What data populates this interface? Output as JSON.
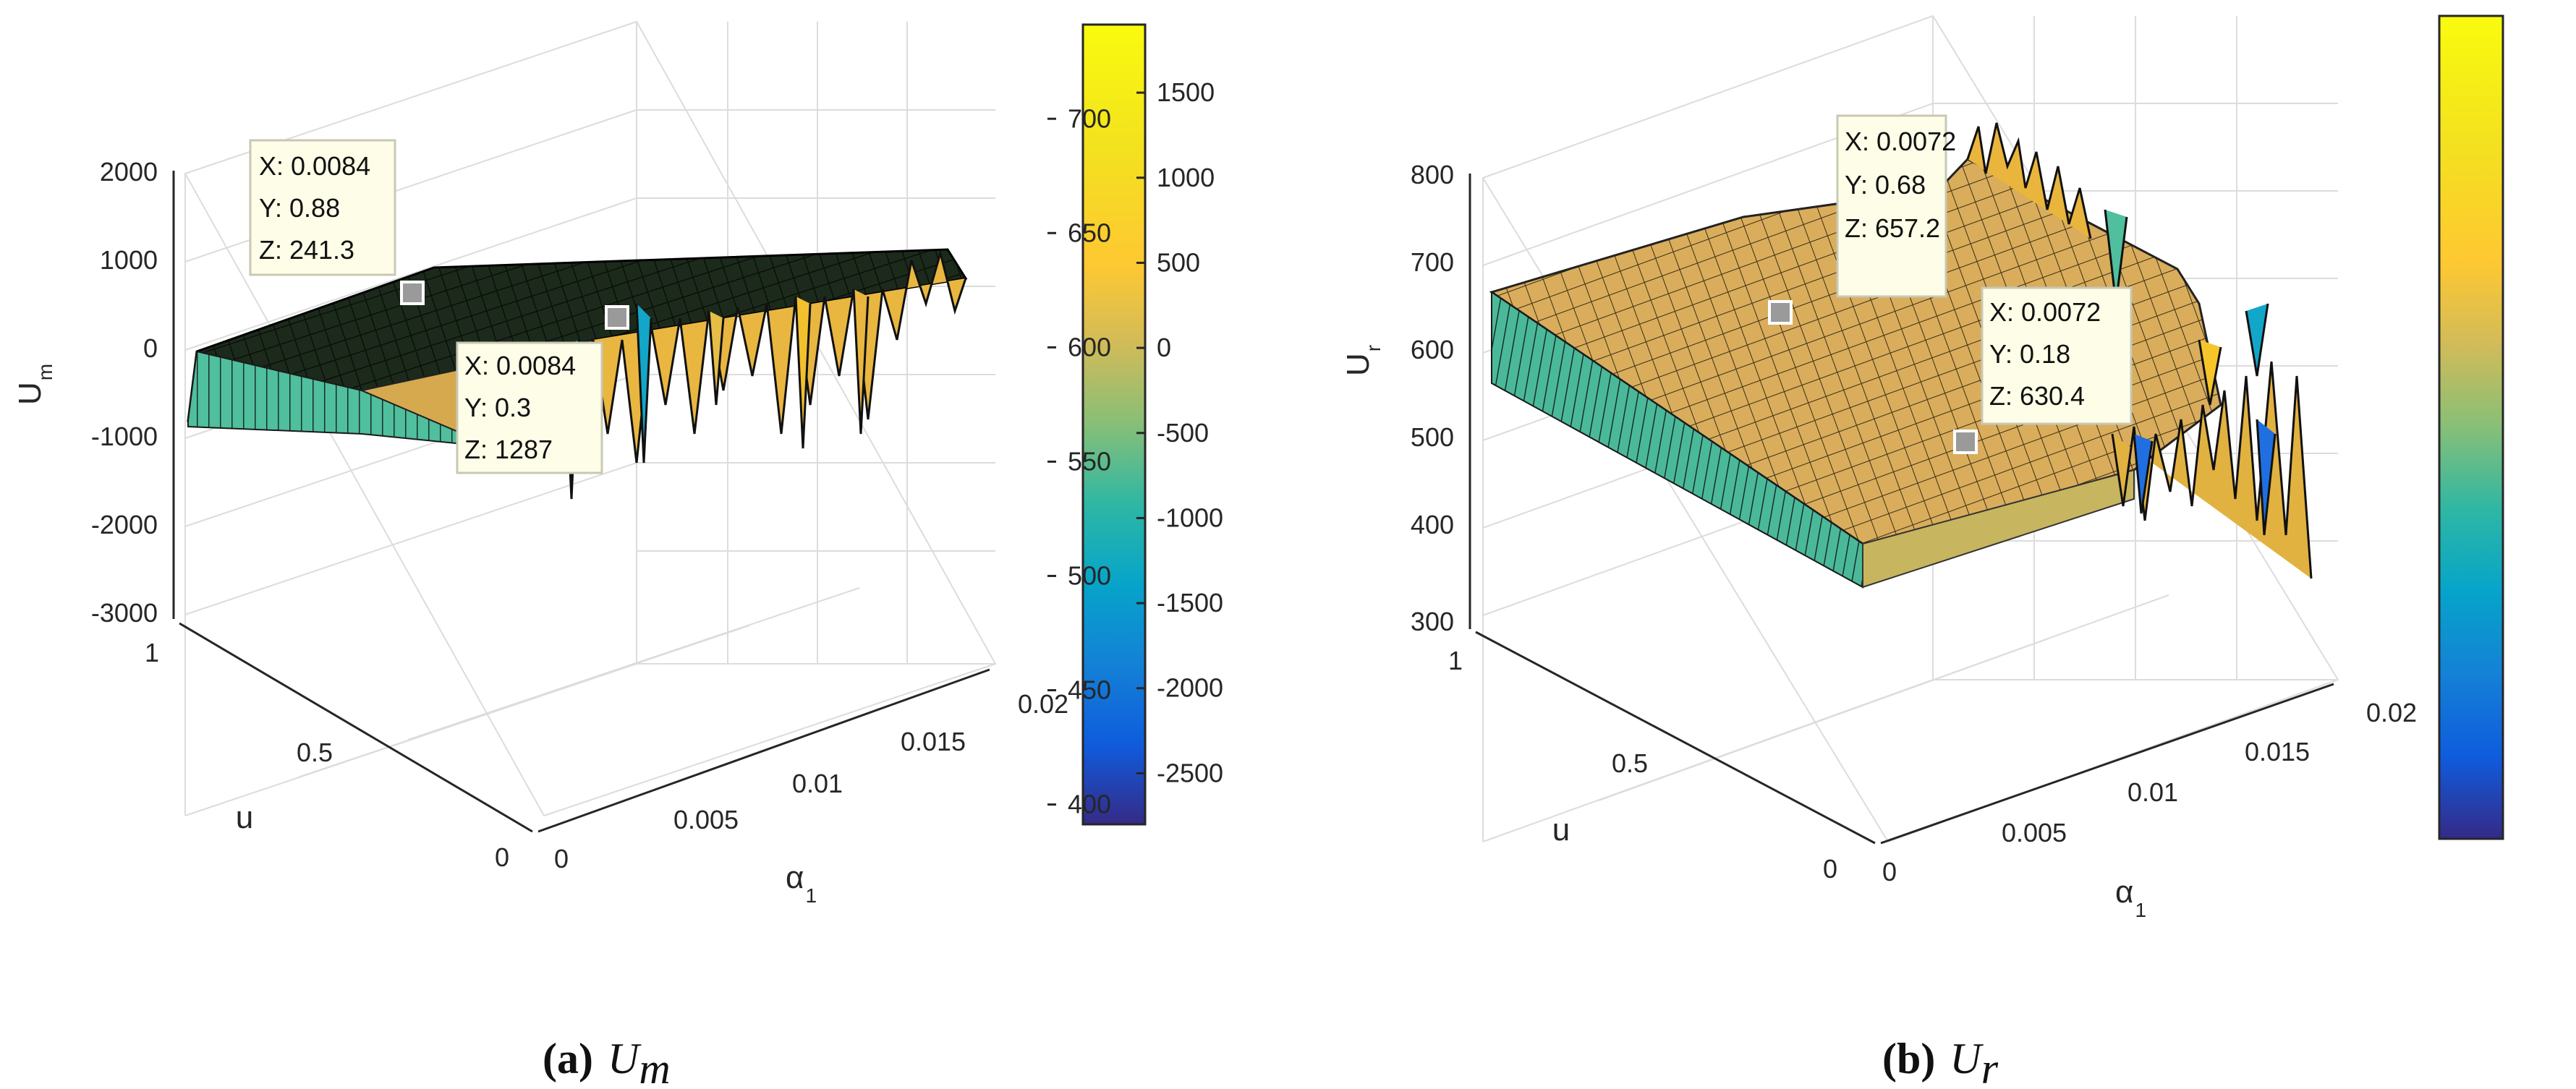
{
  "chart_data": [
    {
      "type": "surface",
      "caption": {
        "label": "(a)",
        "math_main": "U",
        "math_sub": "m"
      },
      "zlabel": {
        "main": "U",
        "sub": "m"
      },
      "ylabel": "u",
      "xlabel": {
        "main": "α",
        "sub": "1"
      },
      "xlim": [
        0,
        0.02
      ],
      "ylim": [
        0,
        1
      ],
      "zlim": [
        -3000,
        2000
      ],
      "x_ticks": [
        "0",
        "0.005",
        "0.01",
        "0.015",
        "0.02"
      ],
      "y_ticks": [
        "0",
        "0.5",
        "1"
      ],
      "z_ticks": [
        "2000",
        "1000",
        "0",
        "-1000",
        "-2000",
        "-3000"
      ],
      "colorbar_ticks": [
        "1500",
        "1000",
        "500",
        "0",
        "-500",
        "-1000",
        "-1500",
        "-2000",
        "-2500"
      ],
      "colorbar_range": [
        -2800,
        1900
      ],
      "datatips": [
        {
          "x_text": "X: 0.0084",
          "y_text": "Y: 0.88",
          "z_text": "Z: 241.3",
          "x": 0.0084,
          "y": 0.88,
          "z": 241.3
        },
        {
          "x_text": "X: 0.0084",
          "y_text": "Y: 0.3",
          "z_text": "Z: 1287",
          "x": 0.0084,
          "y": 0.3,
          "z": 1287
        }
      ]
    },
    {
      "type": "surface",
      "caption": {
        "label": "(b)",
        "math_main": "U",
        "math_sub": "r"
      },
      "zlabel": {
        "main": "U",
        "sub": "r"
      },
      "ylabel": "u",
      "xlabel": {
        "main": "α",
        "sub": "1"
      },
      "xlim": [
        0,
        0.02
      ],
      "ylim": [
        0,
        1
      ],
      "zlim": [
        300,
        800
      ],
      "x_ticks": [
        "0",
        "0.005",
        "0.01",
        "0.015",
        "0.02"
      ],
      "y_ticks": [
        "0",
        "0.5",
        "1"
      ],
      "z_ticks": [
        "800",
        "700",
        "600",
        "500",
        "400",
        "300"
      ],
      "colorbar_ticks": [
        "700",
        "650",
        "600",
        "550",
        "500",
        "450",
        "400"
      ],
      "colorbar_range": [
        385,
        745
      ],
      "datatips": [
        {
          "x_text": "X: 0.0072",
          "y_text": "Y: 0.68",
          "z_text": "Z: 657.2",
          "x": 0.0072,
          "y": 0.68,
          "z": 657.2
        },
        {
          "x_text": "X: 0.0072",
          "y_text": "Y: 0.18",
          "z_text": "Z: 630.4",
          "x": 0.0072,
          "y": 0.18,
          "z": 630.4
        }
      ]
    }
  ]
}
